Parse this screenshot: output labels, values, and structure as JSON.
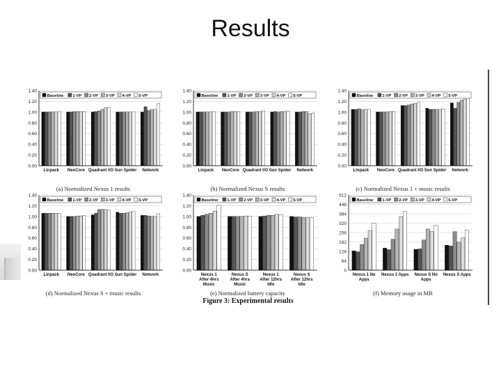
{
  "slide": {
    "title": "Results"
  },
  "figure": {
    "caption": "Figure 3: Experimental results"
  },
  "chart_data": [
    {
      "id": "a",
      "type": "bar",
      "title": "(a) Normalized Nexus 1 results",
      "legend": [
        "Baseline",
        "1-VP",
        "2-VP",
        "3-VP",
        "4-VP",
        "5-VP"
      ],
      "categories": [
        "Linpack",
        "NeoCore",
        "Quadrant I/O",
        "Sun Spider",
        "Network"
      ],
      "ylim": [
        0,
        1.4
      ],
      "yticks": [
        "0.00",
        "0.20",
        "0.40",
        "0.60",
        "0.80",
        "1.00",
        "1.20",
        "1.40"
      ],
      "series": [
        {
          "name": "Baseline",
          "values": [
            1.0,
            1.0,
            1.0,
            1.0,
            1.0
          ]
        },
        {
          "name": "1-VP",
          "values": [
            1.0,
            1.0,
            1.01,
            1.0,
            1.1
          ]
        },
        {
          "name": "2-VP",
          "values": [
            1.0,
            1.01,
            1.02,
            1.0,
            1.03
          ]
        },
        {
          "name": "3-VP",
          "values": [
            1.0,
            1.01,
            1.05,
            1.0,
            1.04
          ]
        },
        {
          "name": "4-VP",
          "values": [
            1.0,
            1.01,
            1.08,
            1.0,
            1.05
          ]
        },
        {
          "name": "5-VP",
          "values": [
            1.01,
            1.01,
            1.08,
            1.0,
            1.16
          ]
        }
      ]
    },
    {
      "id": "b",
      "type": "bar",
      "title": "(b) Normalized Nexus S results",
      "legend": [
        "Baseline",
        "1-VP",
        "2-VP",
        "3-VP",
        "4-VP",
        "5-VP"
      ],
      "categories": [
        "Linpack",
        "NeoCore",
        "Quadrant I/O",
        "Sun Spider",
        "Network"
      ],
      "ylim": [
        0,
        1.4
      ],
      "yticks": [
        "0.00",
        "0.20",
        "0.40",
        "0.60",
        "0.80",
        "1.00",
        "1.20",
        "1.40"
      ],
      "series": [
        {
          "name": "Baseline",
          "values": [
            1.0,
            1.0,
            1.0,
            1.0,
            1.0
          ]
        },
        {
          "name": "1-VP",
          "values": [
            1.0,
            1.0,
            1.0,
            1.01,
            1.0
          ]
        },
        {
          "name": "2-VP",
          "values": [
            1.0,
            1.0,
            1.0,
            1.0,
            1.01
          ]
        },
        {
          "name": "3-VP",
          "values": [
            1.0,
            1.01,
            1.01,
            1.01,
            1.01
          ]
        },
        {
          "name": "4-VP",
          "values": [
            1.0,
            1.01,
            1.01,
            1.01,
            0.97
          ]
        },
        {
          "name": "5-VP",
          "values": [
            1.01,
            1.01,
            1.02,
            1.02,
            0.98
          ]
        }
      ]
    },
    {
      "id": "c",
      "type": "bar",
      "title": "(c) Normalized Nexus 1 + music results",
      "legend": [
        "Baseline",
        "1-VP",
        "2-VP",
        "3-VP",
        "4-VP",
        "5-VP"
      ],
      "categories": [
        "Linpack",
        "NeoCore",
        "Quadrant I/O",
        "Sun Spider",
        "Network"
      ],
      "ylim": [
        0,
        1.4
      ],
      "yticks": [
        "0.00",
        "0.20",
        "0.40",
        "0.60",
        "0.80",
        "1.00",
        "1.20",
        "1.40"
      ],
      "series": [
        {
          "name": "Baseline",
          "values": [
            1.05,
            1.0,
            1.12,
            1.07,
            1.17
          ]
        },
        {
          "name": "1-VP",
          "values": [
            1.05,
            1.0,
            1.12,
            1.05,
            1.07
          ]
        },
        {
          "name": "2-VP",
          "values": [
            1.06,
            1.0,
            1.13,
            1.05,
            1.18
          ]
        },
        {
          "name": "3-VP",
          "values": [
            1.04,
            1.0,
            1.15,
            1.05,
            1.22
          ]
        },
        {
          "name": "4-VP",
          "values": [
            1.05,
            1.01,
            1.16,
            1.05,
            1.24
          ]
        },
        {
          "name": "5-VP",
          "values": [
            1.05,
            1.01,
            1.18,
            1.06,
            1.28
          ]
        }
      ]
    },
    {
      "id": "d",
      "type": "bar",
      "title": "(d) Normalized Nexus S + music results",
      "legend": [
        "Baseline",
        "1-VP",
        "2-VP",
        "3-VP",
        "4-VP",
        "5-VP"
      ],
      "categories": [
        "Linpack",
        "NeoCore",
        "Quadrant I/O",
        "Sun Spider",
        "Network"
      ],
      "ylim": [
        0,
        1.4
      ],
      "yticks": [
        "0.00",
        "0.20",
        "0.40",
        "0.60",
        "0.80",
        "1.00",
        "1.20",
        "1.40"
      ],
      "series": [
        {
          "name": "Baseline",
          "values": [
            1.06,
            1.0,
            1.03,
            1.08,
            1.02
          ]
        },
        {
          "name": "1-VP",
          "values": [
            1.06,
            1.0,
            1.06,
            1.06,
            1.02
          ]
        },
        {
          "name": "2-VP",
          "values": [
            1.06,
            1.0,
            1.13,
            1.06,
            1.01
          ]
        },
        {
          "name": "3-VP",
          "values": [
            1.06,
            1.01,
            1.13,
            1.07,
            1.0
          ]
        },
        {
          "name": "4-VP",
          "values": [
            1.06,
            1.01,
            1.13,
            1.08,
            1.0
          ]
        },
        {
          "name": "5-VP",
          "values": [
            1.06,
            1.02,
            1.12,
            1.1,
            1.05
          ]
        }
      ]
    },
    {
      "id": "e",
      "type": "bar",
      "title": "(e) Normalized battery capacity",
      "legend": [
        "Baseline",
        "1-VP",
        "2-VP",
        "3-VP",
        "4-VP",
        "5-VP"
      ],
      "categories": [
        "Nexus 1 After 4hrs Music",
        "Nexus S After 4hrs Music",
        "Nexus 1 After 12hrs Idle",
        "Nexus S After 12hrs Idle"
      ],
      "ylim": [
        0,
        1.4
      ],
      "yticks": [
        "0.00",
        "0.20",
        "0.40",
        "0.60",
        "0.80",
        "1.00",
        "1.20",
        "1.40"
      ],
      "series": [
        {
          "name": "Baseline",
          "values": [
            1.0,
            1.0,
            1.0,
            1.0
          ]
        },
        {
          "name": "1-VP",
          "values": [
            1.02,
            1.0,
            1.01,
            0.99
          ]
        },
        {
          "name": "2-VP",
          "values": [
            1.04,
            1.0,
            1.02,
            0.99
          ]
        },
        {
          "name": "3-VP",
          "values": [
            1.06,
            1.0,
            1.02,
            0.98
          ]
        },
        {
          "name": "4-VP",
          "values": [
            1.1,
            1.01,
            1.04,
            0.98
          ]
        },
        {
          "name": "5-VP",
          "values": [
            1.21,
            1.0,
            1.03,
            0.98
          ]
        }
      ]
    },
    {
      "id": "f",
      "type": "bar",
      "title": "(f) Memory usage in MB",
      "legend": [
        "Baseline",
        "1-VP",
        "2-VP",
        "3-VP",
        "4-VP",
        "5-VP"
      ],
      "categories": [
        "Nexus 1 No Apps",
        "Nexus 1 Apps",
        "Nexus S No Apps",
        "Nexus S Apps"
      ],
      "ylim": [
        0,
        512
      ],
      "yticks": [
        "0",
        "64",
        "128",
        "192",
        "256",
        "320",
        "384",
        "448",
        "512"
      ],
      "series": [
        {
          "name": "Baseline",
          "values": [
            132,
            150,
            142,
            170
          ]
        },
        {
          "name": "1-VP",
          "values": [
            125,
            140,
            145,
            165
          ]
        },
        {
          "name": "2-VP",
          "values": [
            175,
            210,
            205,
            262
          ]
        },
        {
          "name": "3-VP",
          "values": [
            218,
            280,
            280,
            190
          ]
        },
        {
          "name": "4-VP",
          "values": [
            270,
            365,
            262,
            220
          ]
        },
        {
          "name": "5-VP",
          "values": [
            320,
            400,
            305,
            272
          ]
        }
      ]
    }
  ]
}
